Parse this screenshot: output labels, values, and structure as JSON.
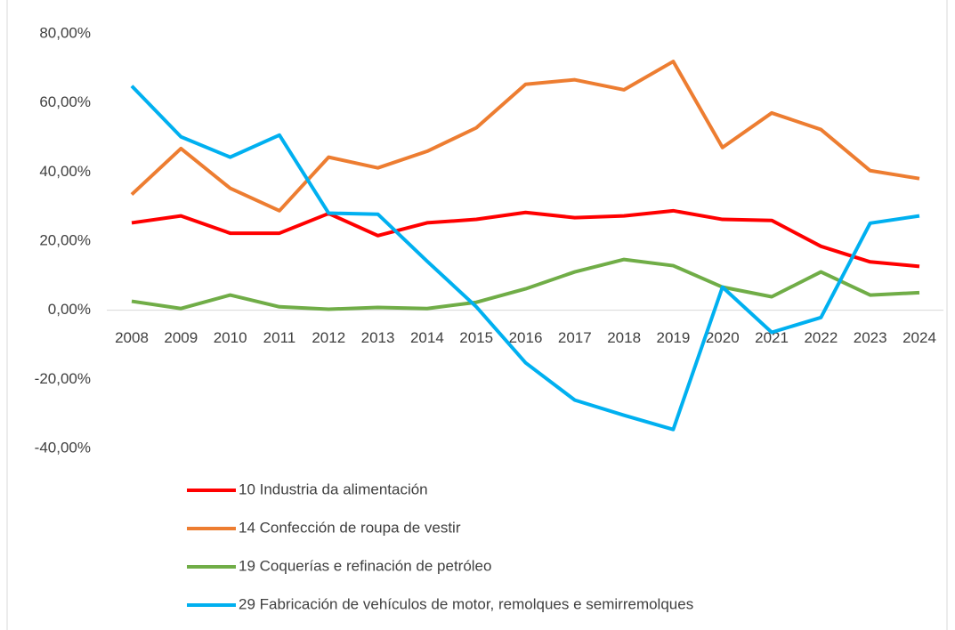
{
  "chart_data": {
    "type": "line",
    "x": [
      "2008",
      "2009",
      "2010",
      "2011",
      "2012",
      "2013",
      "2014",
      "2015",
      "2016",
      "2017",
      "2018",
      "2019",
      "2020",
      "2021",
      "2022",
      "2023",
      "2024"
    ],
    "series": [
      {
        "name": "10 Industria da alimentación",
        "color": "#ff0000",
        "values": [
          25.3,
          27.3,
          22.3,
          22.3,
          28,
          21.6,
          25.3,
          26.3,
          28.3,
          26.8,
          27.3,
          28.8,
          26.3,
          26,
          18.5,
          14,
          12.7
        ]
      },
      {
        "name": "14 Confección de roupa de vestir",
        "color": "#ed7d31",
        "values": [
          33.5,
          46.8,
          35.3,
          28.8,
          44.3,
          41.2,
          46,
          52.8,
          65.4,
          66.7,
          63.8,
          72,
          47.1,
          57.1,
          52.3,
          40.4,
          38.1
        ]
      },
      {
        "name": "19 Coquerías e refinación de petróleo",
        "color": "#70ad47",
        "values": [
          2.6,
          0.5,
          4.4,
          1,
          0.3,
          0.8,
          0.5,
          2.3,
          6.2,
          11.1,
          14.7,
          12.9,
          6.7,
          3.9,
          11.1,
          4.4,
          5.1
        ]
      },
      {
        "name": "29 Fabricación de vehículos de motor, remolques e semirremolques",
        "color": "#00b0f0",
        "values": [
          64.9,
          50.2,
          44.3,
          50.7,
          28.1,
          27.8,
          14.2,
          1,
          -15.2,
          -26,
          -30.4,
          -34.5,
          6.7,
          -6.4,
          -2.1,
          25.2,
          27.3
        ]
      }
    ],
    "ylim": [
      -40,
      80
    ],
    "yticks": [
      {
        "value": -40,
        "label": "-40,00%"
      },
      {
        "value": -20,
        "label": "-20,00%"
      },
      {
        "value": 0,
        "label": "0,00%"
      },
      {
        "value": 20,
        "label": "20,00%"
      },
      {
        "value": 40,
        "label": "40,00%"
      },
      {
        "value": 60,
        "label": "60,00%"
      },
      {
        "value": 80,
        "label": "80,00%"
      }
    ],
    "grid": false,
    "legend": "bottom"
  }
}
